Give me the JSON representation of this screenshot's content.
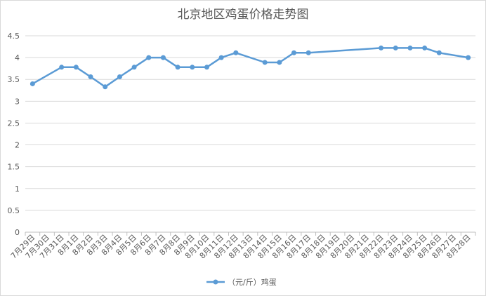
{
  "chart_data": {
    "type": "line",
    "title": "北京地区鸡蛋价格走势图",
    "xlabel": "",
    "ylabel": "",
    "ylim": [
      0,
      4.5
    ],
    "yticks": [
      "0",
      "0.5",
      "1",
      "1.5",
      "2",
      "2.5",
      "3",
      "3.5",
      "4",
      "4.5"
    ],
    "grid": true,
    "legend": "bottom",
    "categories": [
      "7月29日",
      "7月30日",
      "7月31日",
      "8月1日",
      "8月2日",
      "8月3日",
      "8月4日",
      "8月5日",
      "8月6日",
      "8月7日",
      "8月8日",
      "8月9日",
      "8月10日",
      "8月11日",
      "8月12日",
      "8月13日",
      "8月14日",
      "8月15日",
      "8月16日",
      "8月17日",
      "8月18日",
      "8月19日",
      "8月20日",
      "8月21日",
      "8月22日",
      "8月23日",
      "8月24日",
      "8月25日",
      "8月26日",
      "8月27日",
      "8月28日"
    ],
    "series": [
      {
        "name": "（元/斤）鸡蛋",
        "color": "#5b9bd5",
        "values": [
          3.4,
          null,
          3.78,
          3.78,
          3.56,
          3.33,
          3.56,
          3.78,
          4.0,
          4.0,
          3.78,
          3.78,
          3.78,
          4.0,
          4.11,
          null,
          3.89,
          3.89,
          4.11,
          4.11,
          null,
          null,
          null,
          null,
          4.22,
          4.22,
          4.22,
          4.22,
          4.11,
          null,
          4.0
        ]
      }
    ]
  }
}
